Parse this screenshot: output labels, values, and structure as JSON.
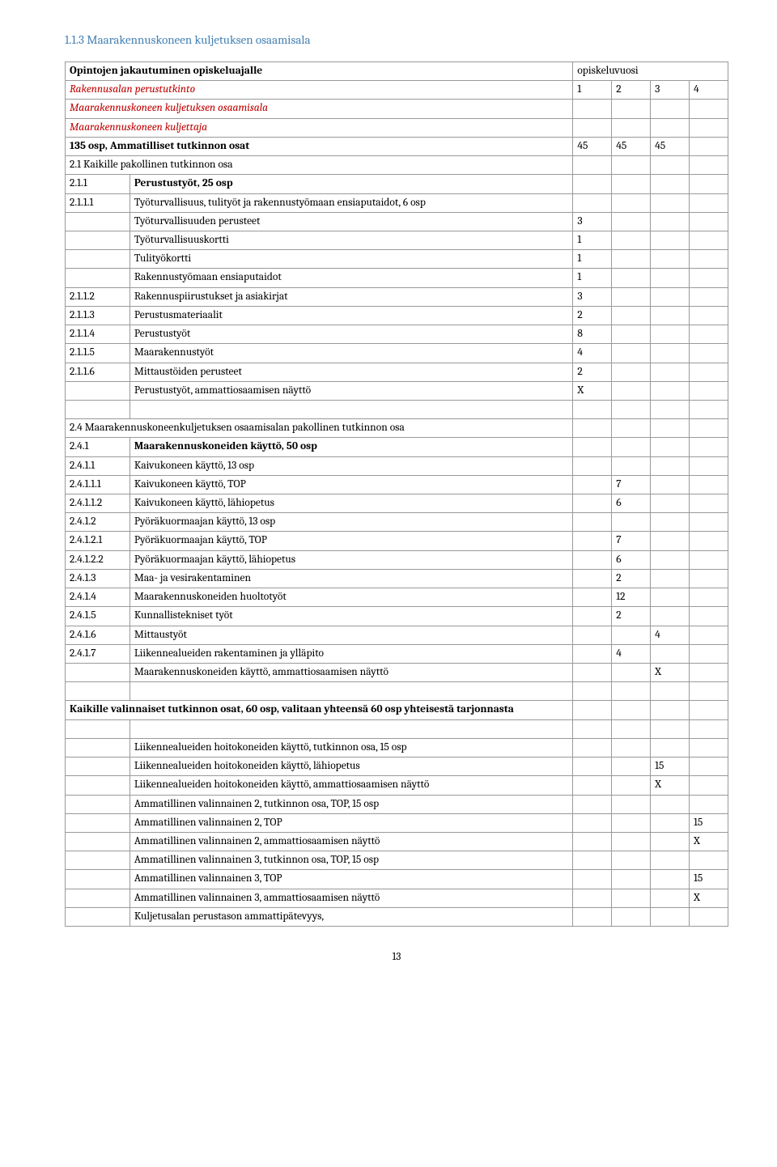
{
  "heading": "1.1.3 Maarakennuskoneen kuljetuksen osaamisala",
  "rows": [
    {
      "c1": "",
      "c2_span": true,
      "c2": "Opintojen jakautuminen opiskeluajalle",
      "c2_class": "bold",
      "c3": "opiskeluvuosi",
      "c3_span": 4
    },
    {
      "c1": "",
      "c2_span": true,
      "c2": "Rakennusalan perustutkinto",
      "c2_class": "italic-red",
      "c3": "1",
      "c4": "2",
      "c5": "3",
      "c6": "4"
    },
    {
      "c1": "",
      "c2_span": true,
      "c2": "Maarakennuskoneen kuljetuksen osaamisala",
      "c2_class": "italic-red",
      "c3": "",
      "c4": "",
      "c5": "",
      "c6": ""
    },
    {
      "c1": "",
      "c2_span": true,
      "c2": "Maarakennuskoneen kuljettaja",
      "c2_class": "italic-red",
      "c3": "",
      "c4": "",
      "c5": "",
      "c6": ""
    },
    {
      "c1": "",
      "c2_span": true,
      "c2": "135 osp, Ammatilliset tutkinnon osat",
      "c2_class": "bold",
      "c3": "45",
      "c4": "45",
      "c5": "45",
      "c6": ""
    },
    {
      "c1": "",
      "c2_span": true,
      "c2": "2.1 Kaikille pakollinen tutkinnon osa",
      "c3": "",
      "c4": "",
      "c5": "",
      "c6": ""
    },
    {
      "c1": "2.1.1",
      "c2": "Perustustyöt, 25 osp",
      "c2_class": "bold",
      "c3": "",
      "c4": "",
      "c5": "",
      "c6": ""
    },
    {
      "c1": "2.1.1.1",
      "c2": "Työturvallisuus, tulityöt ja rakennustyömaan ensiaputaidot, 6 osp",
      "c3": "",
      "c4": "",
      "c5": "",
      "c6": ""
    },
    {
      "c1": "",
      "c2": "Työturvallisuuden perusteet",
      "c3": "3",
      "c4": "",
      "c5": "",
      "c6": ""
    },
    {
      "c1": "",
      "c2": "Työturvallisuuskortti",
      "c3": "1",
      "c4": "",
      "c5": "",
      "c6": ""
    },
    {
      "c1": "",
      "c2": "Tulityökortti",
      "c3": "1",
      "c4": "",
      "c5": "",
      "c6": ""
    },
    {
      "c1": "",
      "c2": "Rakennustyömaan ensiaputaidot",
      "c3": "1",
      "c4": "",
      "c5": "",
      "c6": ""
    },
    {
      "c1": "2.1.1.2",
      "c2": "Rakennuspiirustukset ja asiakirjat",
      "c3": "3",
      "c4": "",
      "c5": "",
      "c6": ""
    },
    {
      "c1": "2.1.1.3",
      "c2": "Perustusmateriaalit",
      "c3": "2",
      "c4": "",
      "c5": "",
      "c6": ""
    },
    {
      "c1": "2.1.1.4",
      "c2": "Perustustyöt",
      "c3": "8",
      "c4": "",
      "c5": "",
      "c6": ""
    },
    {
      "c1": "2.1.1.5",
      "c2": "Maarakennustyöt",
      "c3": "4",
      "c4": "",
      "c5": "",
      "c6": ""
    },
    {
      "c1": "2.1.1.6",
      "c2": "Mittaustöiden perusteet",
      "c3": "2",
      "c4": "",
      "c5": "",
      "c6": ""
    },
    {
      "c1": "",
      "c2": "Perustustyöt, ammattiosaamisen näyttö",
      "c3": "X",
      "c4": "",
      "c5": "",
      "c6": ""
    },
    {
      "blank": true
    },
    {
      "c1": "",
      "c2_span": true,
      "c2": "2.4 Maarakennuskoneenkuljetuksen osaamisalan pakollinen tutkinnon osa",
      "c3": "",
      "c4": "",
      "c5": "",
      "c6": ""
    },
    {
      "c1": "2.4.1",
      "c2": "Maarakennuskoneiden käyttö, 50 osp",
      "c2_class": "bold",
      "c3": "",
      "c4": "",
      "c5": "",
      "c6": ""
    },
    {
      "c1": "2.4.1.1",
      "c2": "Kaivukoneen käyttö, 13 osp",
      "c3": "",
      "c4": "",
      "c5": "",
      "c6": ""
    },
    {
      "c1": "2.4.1.1.1",
      "c2": "Kaivukoneen käyttö, TOP",
      "c3": "",
      "c4": "7",
      "c5": "",
      "c6": ""
    },
    {
      "c1": "2.4.1.1.2",
      "c2": "Kaivukoneen käyttö, lähiopetus",
      "c3": "",
      "c4": "6",
      "c5": "",
      "c6": ""
    },
    {
      "c1": "2.4.1.2",
      "c2": "Pyöräkuormaajan käyttö, 13 osp",
      "c3": "",
      "c4": "",
      "c5": "",
      "c6": ""
    },
    {
      "c1": "2.4.1.2.1",
      "c2": "Pyöräkuormaajan käyttö, TOP",
      "c3": "",
      "c4": "7",
      "c5": "",
      "c6": ""
    },
    {
      "c1": "2.4.1.2.2",
      "c2": "Pyöräkuormaajan käyttö, lähiopetus",
      "c3": "",
      "c4": "6",
      "c5": "",
      "c6": ""
    },
    {
      "c1": "2.4.1.3",
      "c2": "Maa- ja vesirakentaminen",
      "c3": "",
      "c4": "2",
      "c5": "",
      "c6": ""
    },
    {
      "c1": "2.4.1.4",
      "c2": "Maarakennuskoneiden huoltotyöt",
      "c3": "",
      "c4": "12",
      "c5": "",
      "c6": ""
    },
    {
      "c1": "2.4.1.5",
      "c2": "Kunnallistekniset työt",
      "c3": "",
      "c4": "2",
      "c5": "",
      "c6": ""
    },
    {
      "c1": "2.4.1.6",
      "c2": " Mittaustyöt",
      "c3": "",
      "c4": "",
      "c5": "4",
      "c6": ""
    },
    {
      "c1": "2.4.1.7",
      "c2": "Liikennealueiden rakentaminen ja ylläpito",
      "c3": "",
      "c4": "4",
      "c5": "",
      "c6": ""
    },
    {
      "c1": "",
      "c2": "Maarakennuskoneiden käyttö, ammattiosaamisen näyttö",
      "c3": "",
      "c4": "",
      "c5": "X",
      "c6": ""
    },
    {
      "blank": true
    },
    {
      "c1": "",
      "c2_span": true,
      "c2": "Kaikille valinnaiset tutkinnon osat, 60 osp, valitaan yhteensä 60 osp yhteisestä tarjonnasta",
      "c2_class": "bold",
      "c3": "",
      "c4": "",
      "c5": "",
      "c6": ""
    },
    {
      "blank": true
    },
    {
      "c1": "",
      "c2": "Liikennealueiden hoitokoneiden käyttö, tutkinnon osa, 15 osp",
      "c3": "",
      "c4": "",
      "c5": "",
      "c6": ""
    },
    {
      "c1": "",
      "c2": "Liikennealueiden hoitokoneiden käyttö, lähiopetus",
      "c3": "",
      "c4": "",
      "c5": "15",
      "c6": ""
    },
    {
      "c1": "",
      "c2": "Liikennealueiden hoitokoneiden käyttö, ammattiosaamisen näyttö",
      "c3": "",
      "c4": "",
      "c5": "X",
      "c6": ""
    },
    {
      "c1": "",
      "c2": "Ammatillinen valinnainen 2, tutkinnon osa, TOP, 15 osp",
      "c3": "",
      "c4": "",
      "c5": "",
      "c6": ""
    },
    {
      "c1": "",
      "c2": "Ammatillinen valinnainen 2, TOP",
      "c3": "",
      "c4": "",
      "c5": "",
      "c6": "15"
    },
    {
      "c1": "",
      "c2": "Ammatillinen valinnainen 2, ammattiosaamisen näyttö",
      "c3": "",
      "c4": "",
      "c5": "",
      "c6": "X"
    },
    {
      "c1": "",
      "c2": "Ammatillinen valinnainen 3, tutkinnon osa, TOP, 15 osp",
      "c3": "",
      "c4": "",
      "c5": "",
      "c6": ""
    },
    {
      "c1": "",
      "c2": "Ammatillinen valinnainen 3, TOP",
      "c3": "",
      "c4": "",
      "c5": "",
      "c6": "15"
    },
    {
      "c1": "",
      "c2": "Ammatillinen valinnainen 3, ammattiosaamisen näyttö",
      "c3": "",
      "c4": "",
      "c5": "",
      "c6": "X"
    },
    {
      "c1": "",
      "c2": "Kuljetusalan perustason ammattipätevyys,",
      "c3": "",
      "c4": "",
      "c5": "",
      "c6": ""
    }
  ],
  "page_num": "13"
}
